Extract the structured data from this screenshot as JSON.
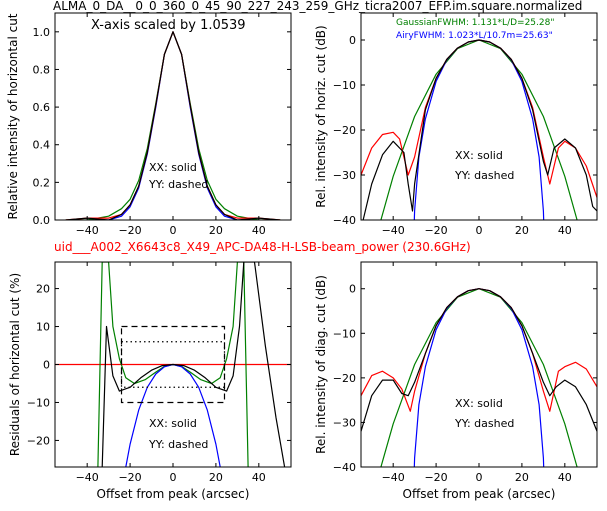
{
  "figure": {
    "title": "ALMA_0_DA__0_0_360_0_45_90_227_243_259_GHz_ticra2007_EFP.im.square.normalized",
    "subtitle": "uid___A002_X6643c8_X49_APC-DA48-H-LSB-beam_power (230.6GHz)",
    "subtitle_color": "#ff0000"
  },
  "chart_data": [
    {
      "id": "horiz-linear",
      "type": "line",
      "ylabel": "Relative intensity of horizontal cut",
      "xlim": [
        -55,
        55
      ],
      "ylim": [
        0,
        1.1
      ],
      "xticks": [
        -40,
        -20,
        0,
        20,
        40
      ],
      "yticks": [
        0.0,
        0.2,
        0.4,
        0.6,
        0.8,
        1.0
      ],
      "annotations": [
        "X-axis scaled by 1.0539",
        "XX: solid",
        "YY: dashed"
      ],
      "series": [
        {
          "color": "#0000ff",
          "x": [
            -40,
            -30,
            -24,
            -20,
            -16,
            -12,
            -8,
            -4,
            0,
            4,
            8,
            12,
            16,
            20,
            24,
            30,
            40
          ],
          "y": [
            0.0,
            0.0,
            0.02,
            0.07,
            0.17,
            0.35,
            0.6,
            0.88,
            1.0,
            0.88,
            0.6,
            0.35,
            0.17,
            0.07,
            0.02,
            0.0,
            0.0
          ]
        },
        {
          "color": "#008000",
          "x": [
            -50,
            -40,
            -30,
            -24,
            -20,
            -16,
            -12,
            -8,
            -4,
            0,
            4,
            8,
            12,
            16,
            20,
            24,
            30,
            40,
            50
          ],
          "y": [
            0.0,
            0.0,
            0.02,
            0.06,
            0.11,
            0.21,
            0.38,
            0.62,
            0.88,
            1.0,
            0.88,
            0.62,
            0.38,
            0.21,
            0.11,
            0.06,
            0.02,
            0.0,
            0.0
          ]
        },
        {
          "color": "#ff0000",
          "x": [
            -50,
            -40,
            -30,
            -24,
            -20,
            -16,
            -12,
            -8,
            -4,
            0,
            4,
            8,
            12,
            16,
            20,
            24,
            30,
            40,
            50
          ],
          "y": [
            0.0,
            0.01,
            0.01,
            0.03,
            0.08,
            0.18,
            0.36,
            0.61,
            0.88,
            1.0,
            0.88,
            0.61,
            0.36,
            0.18,
            0.08,
            0.03,
            0.01,
            0.01,
            0.0
          ]
        },
        {
          "color": "#000000",
          "x": [
            -50,
            -40,
            -30,
            -24,
            -20,
            -16,
            -12,
            -8,
            -4,
            0,
            4,
            8,
            12,
            16,
            20,
            24,
            30,
            40,
            50
          ],
          "y": [
            0.0,
            0.01,
            0.0,
            0.03,
            0.08,
            0.18,
            0.36,
            0.61,
            0.88,
            1.0,
            0.88,
            0.61,
            0.36,
            0.18,
            0.08,
            0.03,
            0.0,
            0.01,
            0.0
          ]
        }
      ]
    },
    {
      "id": "horiz-db",
      "type": "line",
      "ylabel": "Rel. intensity of horiz. cut (dB)",
      "xlim": [
        -55,
        55
      ],
      "ylim": [
        -40,
        6
      ],
      "xticks": [
        -40,
        -20,
        0,
        20,
        40
      ],
      "yticks": [
        0,
        -10,
        -20,
        -30,
        -40
      ],
      "annotations": [
        "GaussianFWHM: 1.131*L/D=25.28\"",
        "AiryFWHM: 1.023*L/10.7m=25.63\"",
        "XX: solid",
        "YY: dashed"
      ],
      "annotation_colors": [
        "#008000",
        "#0000ff",
        "#000000",
        "#000000"
      ],
      "series": [
        {
          "color": "#008000",
          "x": [
            -50,
            -40,
            -30,
            -20,
            -10,
            0,
            10,
            20,
            30,
            40,
            50
          ],
          "y": [
            -47.3,
            -30.3,
            -17.0,
            -7.6,
            -1.9,
            0,
            -1.9,
            -7.6,
            -17.0,
            -30.3,
            -47.3
          ]
        },
        {
          "color": "#0000ff",
          "x": [
            -30.5,
            -30,
            -28,
            -25,
            -20,
            -15,
            -10,
            -5,
            0,
            5,
            10,
            15,
            20,
            25,
            28,
            30,
            30.5
          ],
          "y": [
            -45,
            -38,
            -26,
            -17.5,
            -9.2,
            -4.4,
            -1.8,
            -0.45,
            0,
            -0.45,
            -1.8,
            -4.4,
            -9.2,
            -17.5,
            -26,
            -38,
            -45
          ]
        },
        {
          "color": "#ff0000",
          "x": [
            -55,
            -50,
            -45,
            -40,
            -37,
            -33,
            -30,
            -25,
            -20,
            -15,
            -10,
            -5,
            0,
            5,
            10,
            15,
            20,
            25,
            30,
            33,
            37,
            40,
            45,
            50,
            55
          ],
          "y": [
            -30,
            -24,
            -21,
            -20.5,
            -22,
            -30,
            -26,
            -15,
            -8.5,
            -4.3,
            -1.8,
            -0.45,
            0,
            -0.45,
            -1.8,
            -4.3,
            -8.5,
            -15,
            -26,
            -32,
            -24,
            -22.5,
            -24,
            -28,
            -35
          ]
        },
        {
          "color": "#000000",
          "x": [
            -55,
            -50,
            -45,
            -40,
            -35,
            -33,
            -31,
            -30,
            -25,
            -20,
            -15,
            -10,
            -5,
            0,
            5,
            10,
            15,
            20,
            25,
            30,
            32,
            35,
            40,
            45,
            50,
            53,
            55
          ],
          "y": [
            -42,
            -32,
            -25.5,
            -22.5,
            -25,
            -32,
            -38,
            -32,
            -15.5,
            -8.5,
            -4.3,
            -1.8,
            -0.45,
            0,
            -0.45,
            -1.8,
            -4.3,
            -8.5,
            -15.5,
            -27,
            -30,
            -24,
            -22,
            -24,
            -30,
            -37,
            -38
          ]
        }
      ]
    },
    {
      "id": "residuals",
      "type": "line",
      "ylabel": "Residuals of horizontal cut (%)",
      "xlabel": "Offset from peak (arcsec)",
      "xlim": [
        -55,
        55
      ],
      "ylim": [
        -27,
        27
      ],
      "xticks": [
        -40,
        -20,
        0,
        20,
        40
      ],
      "yticks": [
        20,
        10,
        0,
        -10,
        -20
      ],
      "annotations": [
        "XX: solid",
        "YY: dashed"
      ],
      "series": [
        {
          "color": "#ff0000",
          "x": [
            -55,
            55
          ],
          "y": [
            0,
            0
          ]
        },
        {
          "color": "#008000",
          "x": [
            -35,
            -33,
            -30,
            -28,
            -25,
            -22,
            -18,
            -13,
            -8,
            -4,
            0,
            4,
            8,
            13,
            18,
            22,
            25,
            28,
            30,
            33,
            35
          ],
          "y": [
            -27,
            27,
            27,
            10,
            1.5,
            -3.5,
            -5,
            -4,
            -2,
            -0.5,
            0,
            -0.5,
            -2,
            -4,
            -5,
            -3.5,
            1.5,
            10,
            27,
            27,
            -27
          ]
        },
        {
          "color": "#0000ff",
          "x": [
            -22,
            -20,
            -16,
            -12,
            -8,
            -4,
            0,
            4,
            8,
            12,
            16,
            20,
            22
          ],
          "y": [
            -27,
            -21,
            -12,
            -6,
            -2.5,
            -0.6,
            0,
            -0.6,
            -2.5,
            -6,
            -12,
            -21,
            -27
          ]
        },
        {
          "color": "#000000",
          "x": [
            -33,
            -31,
            -28,
            -25,
            -20,
            -15,
            -10,
            -5,
            0,
            5,
            10,
            15,
            20,
            25,
            28,
            31,
            33,
            38,
            43,
            48,
            52
          ],
          "y": [
            -27,
            10,
            -3,
            -7,
            -6,
            -3.5,
            -1.5,
            -0.3,
            0,
            -0.3,
            -1.5,
            -3.5,
            -6,
            -7,
            -3,
            10,
            27,
            27,
            5,
            -14,
            -27
          ]
        }
      ],
      "boxes": [
        {
          "style": "dashed",
          "x": [
            -24,
            24
          ],
          "y": [
            -10,
            10
          ]
        },
        {
          "style": "dotted",
          "x": [
            -24,
            24
          ],
          "y": [
            -6,
            6
          ]
        }
      ]
    },
    {
      "id": "diag-db",
      "type": "line",
      "ylabel": "Rel. intensity of diag. cut (dB)",
      "xlabel": "Offset from peak (arcsec)",
      "xlim": [
        -55,
        55
      ],
      "ylim": [
        -40,
        6
      ],
      "xticks": [
        -40,
        -20,
        0,
        20,
        40
      ],
      "yticks": [
        0,
        -10,
        -20,
        -30,
        -40
      ],
      "annotations": [
        "XX: solid",
        "YY: dashed"
      ],
      "series": [
        {
          "color": "#008000",
          "x": [
            -50,
            -40,
            -30,
            -20,
            -10,
            0,
            10,
            20,
            30,
            40,
            50
          ],
          "y": [
            -47.3,
            -30.3,
            -17.0,
            -7.6,
            -1.9,
            0,
            -1.9,
            -7.6,
            -17.0,
            -30.3,
            -47.3
          ]
        },
        {
          "color": "#0000ff",
          "x": [
            -30.5,
            -30,
            -28,
            -25,
            -20,
            -15,
            -10,
            -5,
            0,
            5,
            10,
            15,
            20,
            25,
            28,
            30,
            30.5
          ],
          "y": [
            -45,
            -38,
            -26,
            -17.5,
            -9.2,
            -4.4,
            -1.8,
            -0.45,
            0,
            -0.45,
            -1.8,
            -4.4,
            -9.2,
            -17.5,
            -26,
            -38,
            -45
          ]
        },
        {
          "color": "#ff0000",
          "x": [
            -55,
            -50,
            -45,
            -40,
            -36,
            -32,
            -30,
            -25,
            -20,
            -15,
            -10,
            -5,
            0,
            5,
            10,
            15,
            20,
            25,
            30,
            33,
            37,
            40,
            45,
            50,
            55
          ],
          "y": [
            -24,
            -19.5,
            -18.5,
            -20,
            -22.5,
            -27.5,
            -23,
            -14.5,
            -8.3,
            -4.2,
            -1.8,
            -0.45,
            0,
            -0.45,
            -1.8,
            -4.2,
            -8.3,
            -14.5,
            -23,
            -27.5,
            -18.5,
            -17.5,
            -16.5,
            -18,
            -22
          ]
        },
        {
          "color": "#000000",
          "x": [
            -55,
            -50,
            -45,
            -40,
            -36,
            -33,
            -30,
            -25,
            -20,
            -15,
            -10,
            -5,
            0,
            5,
            10,
            15,
            20,
            25,
            30,
            33,
            36,
            40,
            45,
            50,
            55
          ],
          "y": [
            -32,
            -24,
            -20.5,
            -20.5,
            -23.5,
            -24,
            -21,
            -14.5,
            -8.3,
            -4.2,
            -1.8,
            -0.45,
            0,
            -0.45,
            -1.8,
            -4.2,
            -8.3,
            -14.5,
            -21,
            -24,
            -22,
            -20.5,
            -22,
            -26,
            -32
          ]
        }
      ]
    }
  ]
}
